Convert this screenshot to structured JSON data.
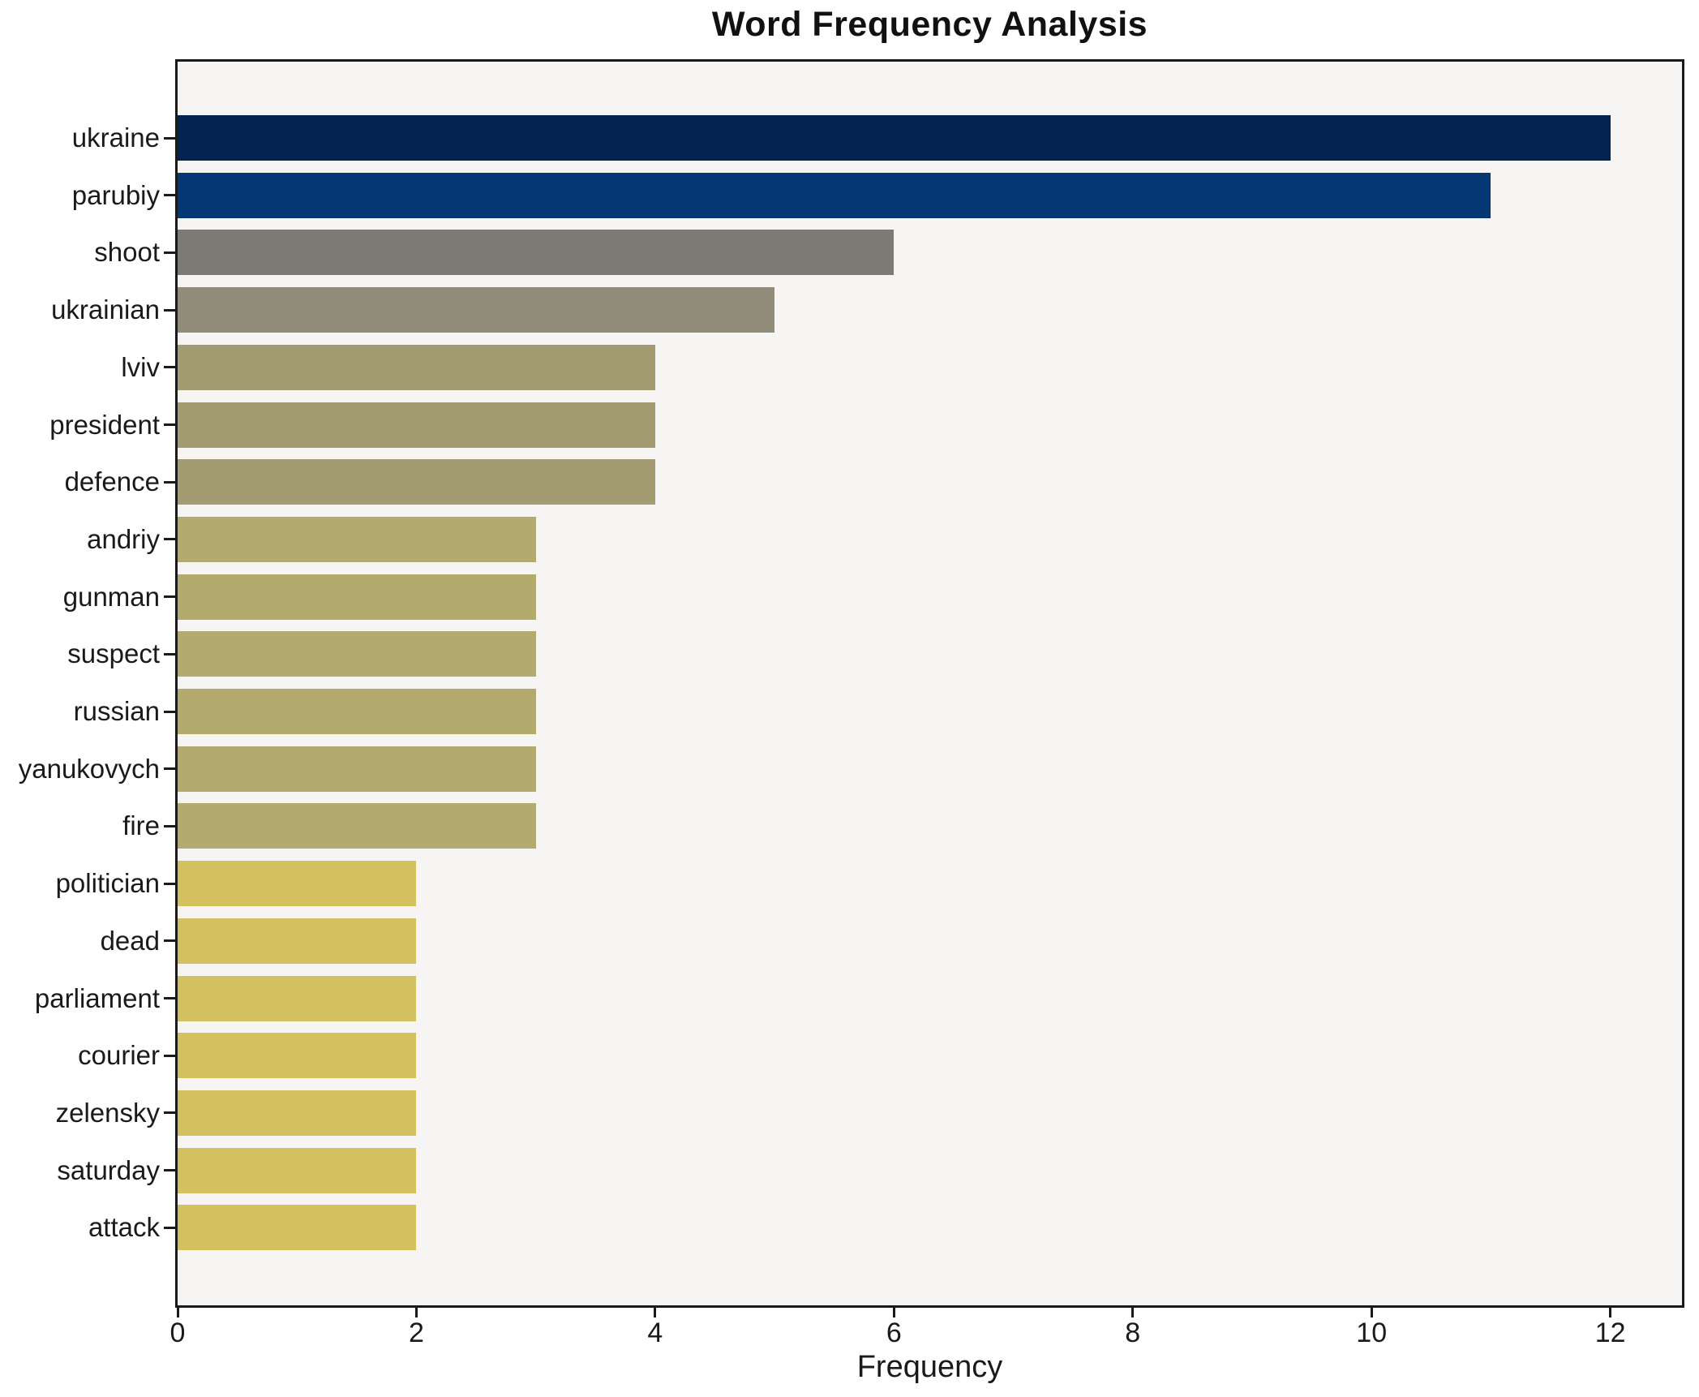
{
  "chart_data": {
    "type": "bar",
    "orientation": "horizontal",
    "title": "Word Frequency Analysis",
    "xlabel": "Frequency",
    "categories": [
      "ukraine",
      "parubiy",
      "shoot",
      "ukrainian",
      "lviv",
      "president",
      "defence",
      "andriy",
      "gunman",
      "suspect",
      "russian",
      "yanukovych",
      "fire",
      "politician",
      "dead",
      "parliament",
      "courier",
      "zelensky",
      "saturday",
      "attack"
    ],
    "values": [
      12,
      11,
      6,
      5,
      4,
      4,
      4,
      3,
      3,
      3,
      3,
      3,
      3,
      2,
      2,
      2,
      2,
      2,
      2,
      2
    ],
    "bar_colors": [
      "#02234f",
      "#053775",
      "#7b7a74",
      "#918c7a",
      "#a39c73",
      "#a39c73",
      "#a39c73",
      "#b3aa6d",
      "#b3aa6d",
      "#b3aa6d",
      "#b3aa6d",
      "#b3aa6d",
      "#b3aa6d",
      "#d2c15e",
      "#d2c15e",
      "#d2c15e",
      "#d2c15e",
      "#d2c15e",
      "#d2c15e",
      "#d2c15e"
    ],
    "x_ticks": [
      0,
      2,
      4,
      6,
      8,
      10,
      12
    ],
    "xlim": [
      0,
      12.6
    ],
    "grid": false,
    "legend": false,
    "plot_background": "#f6f5f3",
    "figure_background": "#ffffff",
    "spine_color": "#1a1a1a",
    "text_color": "#1a1a1a"
  }
}
